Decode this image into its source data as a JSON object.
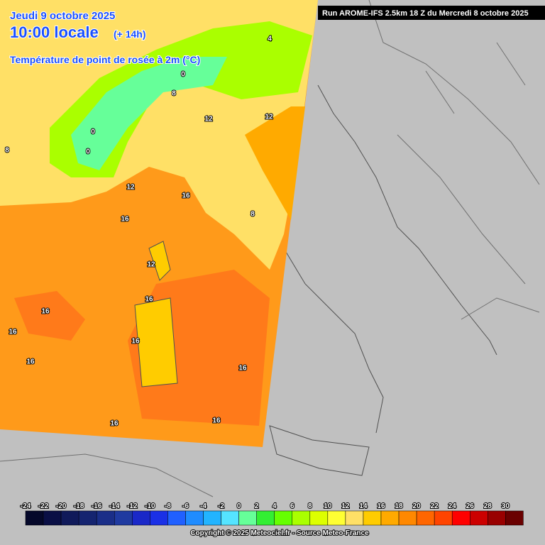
{
  "header": {
    "date": "Jeudi 9 octobre 2025",
    "time": "10:00 locale",
    "lead": "(+ 14h)",
    "variable": "Température de point de rosée à 2m (°C)"
  },
  "run": "Run AROME-IFS 2.5km 18 Z du Mercredi 8 octobre 2025",
  "legend": {
    "labels": [
      "-24",
      "-22",
      "-20",
      "-18",
      "-16",
      "-14",
      "-12",
      "-10",
      "-8",
      "-6",
      "-4",
      "-2",
      "0",
      "2",
      "4",
      "6",
      "8",
      "10",
      "12",
      "14",
      "16",
      "18",
      "20",
      "22",
      "24",
      "26",
      "28",
      "30"
    ],
    "colors": [
      "#05082a",
      "#0a0f45",
      "#101a5a",
      "#152470",
      "#1a2e88",
      "#1f3aa0",
      "#1a28c8",
      "#1a30e6",
      "#2060ff",
      "#1f8cff",
      "#22b4ff",
      "#55e4ff",
      "#66ff99",
      "#33ee33",
      "#66ff00",
      "#aaff00",
      "#ddff00",
      "#ffff33",
      "#ffe066",
      "#ffcc00",
      "#ffaa00",
      "#ff8800",
      "#ff6600",
      "#ff4400",
      "#ff0000",
      "#cc0000",
      "#990000",
      "#6a0000"
    ]
  },
  "copyright": "Copyright © 2025 Meteociel.fr - Source Meteo-France",
  "contour_labels": [
    "4",
    "0",
    "8",
    "12",
    "12",
    "0",
    "0",
    "8",
    "12",
    "16",
    "8",
    "16",
    "12",
    "16",
    "16",
    "16",
    "16",
    "16",
    "16",
    "16",
    "16"
  ]
}
